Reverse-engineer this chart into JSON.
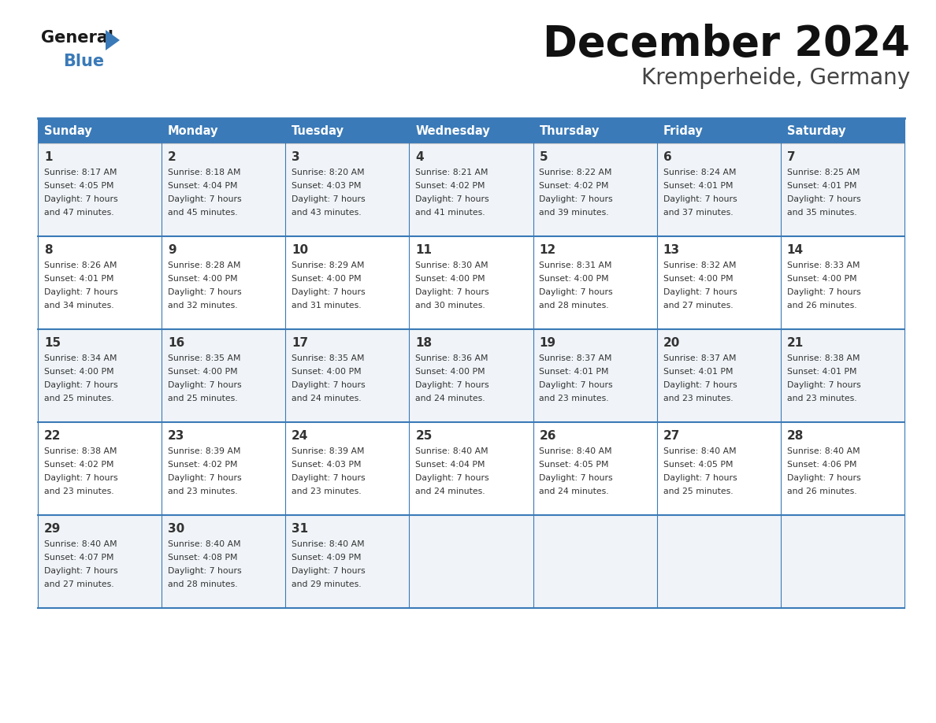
{
  "title": "December 2024",
  "subtitle": "Kremperheide, Germany",
  "header_color": "#3a7ab8",
  "header_text_color": "#ffffff",
  "cell_bg_even": "#f0f4f8",
  "cell_bg_odd": "#ffffff",
  "text_color": "#333333",
  "border_color": "#3a7ab8",
  "thin_border_color": "#aaaaaa",
  "days_of_week": [
    "Sunday",
    "Monday",
    "Tuesday",
    "Wednesday",
    "Thursday",
    "Friday",
    "Saturday"
  ],
  "calendar": [
    [
      {
        "day": 1,
        "sunrise": "8:17 AM",
        "sunset": "4:05 PM",
        "daylight": "7 hours and 47 minutes."
      },
      {
        "day": 2,
        "sunrise": "8:18 AM",
        "sunset": "4:04 PM",
        "daylight": "7 hours and 45 minutes."
      },
      {
        "day": 3,
        "sunrise": "8:20 AM",
        "sunset": "4:03 PM",
        "daylight": "7 hours and 43 minutes."
      },
      {
        "day": 4,
        "sunrise": "8:21 AM",
        "sunset": "4:02 PM",
        "daylight": "7 hours and 41 minutes."
      },
      {
        "day": 5,
        "sunrise": "8:22 AM",
        "sunset": "4:02 PM",
        "daylight": "7 hours and 39 minutes."
      },
      {
        "day": 6,
        "sunrise": "8:24 AM",
        "sunset": "4:01 PM",
        "daylight": "7 hours and 37 minutes."
      },
      {
        "day": 7,
        "sunrise": "8:25 AM",
        "sunset": "4:01 PM",
        "daylight": "7 hours and 35 minutes."
      }
    ],
    [
      {
        "day": 8,
        "sunrise": "8:26 AM",
        "sunset": "4:01 PM",
        "daylight": "7 hours and 34 minutes."
      },
      {
        "day": 9,
        "sunrise": "8:28 AM",
        "sunset": "4:00 PM",
        "daylight": "7 hours and 32 minutes."
      },
      {
        "day": 10,
        "sunrise": "8:29 AM",
        "sunset": "4:00 PM",
        "daylight": "7 hours and 31 minutes."
      },
      {
        "day": 11,
        "sunrise": "8:30 AM",
        "sunset": "4:00 PM",
        "daylight": "7 hours and 30 minutes."
      },
      {
        "day": 12,
        "sunrise": "8:31 AM",
        "sunset": "4:00 PM",
        "daylight": "7 hours and 28 minutes."
      },
      {
        "day": 13,
        "sunrise": "8:32 AM",
        "sunset": "4:00 PM",
        "daylight": "7 hours and 27 minutes."
      },
      {
        "day": 14,
        "sunrise": "8:33 AM",
        "sunset": "4:00 PM",
        "daylight": "7 hours and 26 minutes."
      }
    ],
    [
      {
        "day": 15,
        "sunrise": "8:34 AM",
        "sunset": "4:00 PM",
        "daylight": "7 hours and 25 minutes."
      },
      {
        "day": 16,
        "sunrise": "8:35 AM",
        "sunset": "4:00 PM",
        "daylight": "7 hours and 25 minutes."
      },
      {
        "day": 17,
        "sunrise": "8:35 AM",
        "sunset": "4:00 PM",
        "daylight": "7 hours and 24 minutes."
      },
      {
        "day": 18,
        "sunrise": "8:36 AM",
        "sunset": "4:00 PM",
        "daylight": "7 hours and 24 minutes."
      },
      {
        "day": 19,
        "sunrise": "8:37 AM",
        "sunset": "4:01 PM",
        "daylight": "7 hours and 23 minutes."
      },
      {
        "day": 20,
        "sunrise": "8:37 AM",
        "sunset": "4:01 PM",
        "daylight": "7 hours and 23 minutes."
      },
      {
        "day": 21,
        "sunrise": "8:38 AM",
        "sunset": "4:01 PM",
        "daylight": "7 hours and 23 minutes."
      }
    ],
    [
      {
        "day": 22,
        "sunrise": "8:38 AM",
        "sunset": "4:02 PM",
        "daylight": "7 hours and 23 minutes."
      },
      {
        "day": 23,
        "sunrise": "8:39 AM",
        "sunset": "4:02 PM",
        "daylight": "7 hours and 23 minutes."
      },
      {
        "day": 24,
        "sunrise": "8:39 AM",
        "sunset": "4:03 PM",
        "daylight": "7 hours and 23 minutes."
      },
      {
        "day": 25,
        "sunrise": "8:40 AM",
        "sunset": "4:04 PM",
        "daylight": "7 hours and 24 minutes."
      },
      {
        "day": 26,
        "sunrise": "8:40 AM",
        "sunset": "4:05 PM",
        "daylight": "7 hours and 24 minutes."
      },
      {
        "day": 27,
        "sunrise": "8:40 AM",
        "sunset": "4:05 PM",
        "daylight": "7 hours and 25 minutes."
      },
      {
        "day": 28,
        "sunrise": "8:40 AM",
        "sunset": "4:06 PM",
        "daylight": "7 hours and 26 minutes."
      }
    ],
    [
      {
        "day": 29,
        "sunrise": "8:40 AM",
        "sunset": "4:07 PM",
        "daylight": "7 hours and 27 minutes."
      },
      {
        "day": 30,
        "sunrise": "8:40 AM",
        "sunset": "4:08 PM",
        "daylight": "7 hours and 28 minutes."
      },
      {
        "day": 31,
        "sunrise": "8:40 AM",
        "sunset": "4:09 PM",
        "daylight": "7 hours and 29 minutes."
      },
      null,
      null,
      null,
      null
    ]
  ],
  "logo_text_general": "General",
  "logo_text_blue": "Blue",
  "logo_triangle_color": "#3a7ab8",
  "logo_general_color": "#1a1a1a"
}
